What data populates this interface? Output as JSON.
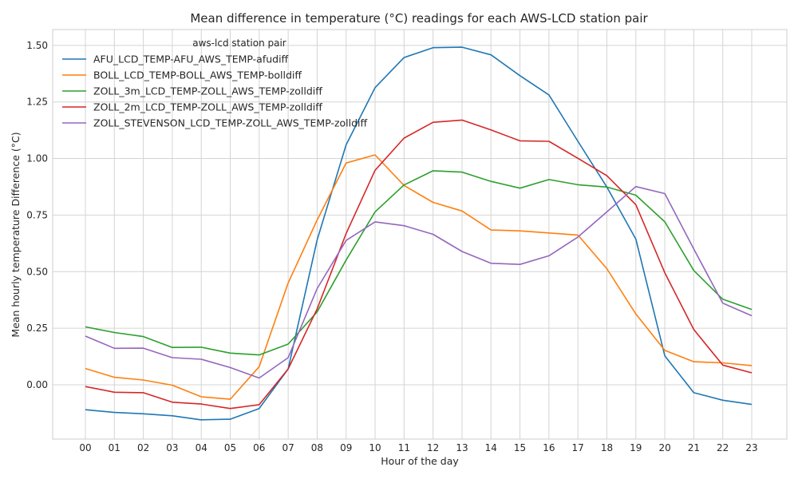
{
  "chart_data": {
    "type": "line",
    "title": "Mean difference in temperature (°C) readings for each AWS-LCD station pair",
    "xlabel": "Hour of the day",
    "ylabel": "Mean hourly temperature Difference (°C)",
    "categories": [
      "00",
      "01",
      "02",
      "03",
      "04",
      "05",
      "06",
      "07",
      "08",
      "09",
      "10",
      "11",
      "12",
      "13",
      "14",
      "15",
      "16",
      "17",
      "18",
      "19",
      "20",
      "21",
      "22",
      "23"
    ],
    "ylim": [
      -0.24,
      1.57
    ],
    "yticks": [
      "0.00",
      "0.25",
      "0.50",
      "0.75",
      "1.00",
      "1.25",
      "1.50"
    ],
    "ytick_values": [
      0,
      0.25,
      0.5,
      0.75,
      1.0,
      1.25,
      1.5
    ],
    "grid": true,
    "legend": {
      "title": "aws-lcd station pair",
      "placement": "top-left"
    },
    "series": [
      {
        "name": "AFU_LCD_TEMP-AFU_AWS_TEMP-afudiff",
        "color": "#1f77b4",
        "values": [
          -0.11,
          -0.122,
          -0.128,
          -0.137,
          -0.155,
          -0.152,
          -0.105,
          0.07,
          0.64,
          1.06,
          1.313,
          1.446,
          1.49,
          1.492,
          1.458,
          1.366,
          1.281,
          1.076,
          0.874,
          0.644,
          0.128,
          -0.035,
          -0.068,
          -0.087
        ]
      },
      {
        "name": "BOLL_LCD_TEMP-BOLL_AWS_TEMP-bolldiff",
        "color": "#ff7f0e",
        "values": [
          0.072,
          0.033,
          0.021,
          -0.002,
          -0.053,
          -0.064,
          0.08,
          0.45,
          0.728,
          0.98,
          1.016,
          0.881,
          0.806,
          0.768,
          0.684,
          0.68,
          0.671,
          0.662,
          0.513,
          0.313,
          0.152,
          0.102,
          0.097,
          0.085
        ]
      },
      {
        "name": "ZOLL_3m_LCD_TEMP-ZOLL_AWS_TEMP-zolldiff",
        "color": "#2ca02c",
        "values": [
          0.256,
          0.231,
          0.213,
          0.165,
          0.166,
          0.14,
          0.132,
          0.18,
          0.322,
          0.551,
          0.764,
          0.883,
          0.946,
          0.94,
          0.899,
          0.869,
          0.907,
          0.884,
          0.874,
          0.838,
          0.72,
          0.505,
          0.378,
          0.333
        ]
      },
      {
        "name": "ZOLL_2m_LCD_TEMP-ZOLL_AWS_TEMP-zolldiff",
        "color": "#d62728",
        "values": [
          -0.008,
          -0.033,
          -0.035,
          -0.077,
          -0.085,
          -0.105,
          -0.088,
          0.07,
          0.335,
          0.668,
          0.948,
          1.09,
          1.16,
          1.17,
          1.126,
          1.078,
          1.076,
          1.001,
          0.924,
          0.796,
          0.495,
          0.244,
          0.087,
          0.053
        ]
      },
      {
        "name": "ZOLL_STEVENSON_LCD_TEMP-ZOLL_AWS_TEMP-zolldiff",
        "color": "#9467bd",
        "values": [
          0.215,
          0.161,
          0.162,
          0.12,
          0.113,
          0.076,
          0.03,
          0.12,
          0.425,
          0.638,
          0.72,
          0.703,
          0.665,
          0.589,
          0.537,
          0.532,
          0.57,
          0.653,
          0.764,
          0.876,
          0.845,
          0.6,
          0.361,
          0.305
        ]
      }
    ]
  }
}
